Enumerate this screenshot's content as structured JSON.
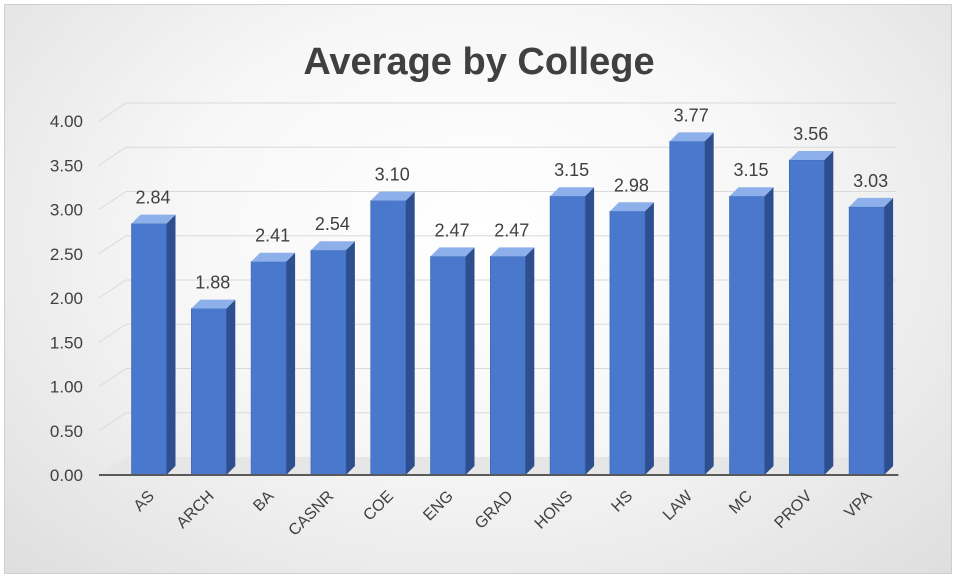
{
  "chart_data": {
    "type": "bar",
    "title": "Average by College",
    "xlabel": "",
    "ylabel": "",
    "ylim": [
      0,
      4
    ],
    "yticks": [
      "0.00",
      "0.50",
      "1.00",
      "1.50",
      "2.00",
      "2.50",
      "3.00",
      "3.50",
      "4.00"
    ],
    "categories": [
      "AS",
      "ARCH",
      "BA",
      "CASNR",
      "COE",
      "ENG",
      "GRAD",
      "HONS",
      "HS",
      "LAW",
      "MC",
      "PROV",
      "VPA"
    ],
    "values": [
      2.84,
      1.88,
      2.41,
      2.54,
      3.1,
      2.47,
      2.47,
      3.15,
      2.98,
      3.77,
      3.15,
      3.56,
      3.03
    ],
    "value_labels": [
      "2.84",
      "1.88",
      "2.41",
      "2.54",
      "3.10",
      "2.47",
      "2.47",
      "3.15",
      "2.98",
      "3.77",
      "3.15",
      "3.56",
      "3.03"
    ],
    "grid": true,
    "style": "3d-column",
    "colors": {
      "bar_front": "#4a78cc",
      "bar_side": "#2e4f8f",
      "bar_top": "#8db0ea",
      "grid": "#d9d9d9",
      "text": "#404040"
    }
  }
}
